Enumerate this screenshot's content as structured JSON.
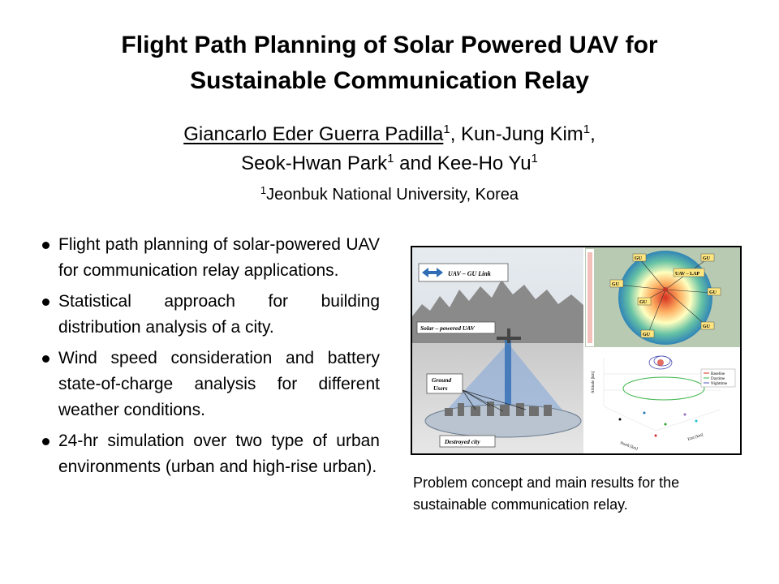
{
  "title": {
    "line1": "Flight Path Planning of Solar Powered UAV for",
    "line2": "Sustainable Communication Relay"
  },
  "authors": {
    "a1": "Giancarlo Eder Guerra Padilla",
    "a2": "Kun-Jung Kim",
    "a3": "Seok-Hwan Park",
    "a4": "Kee-Ho Yu",
    "sup": "1",
    "sep_comma": ", ",
    "sep_and": " and "
  },
  "affiliation": {
    "sup": "1",
    "text": "Jeonbuk National University, Korea"
  },
  "bullets": [
    "Flight path planning of solar-powered UAV for communication relay applications.",
    "Statistical approach for building distribution analysis of a city.",
    "Wind speed consideration and battery state-of-charge analysis for different weather conditions.",
    "24-hr simulation over two type of urban environments (urban and high-rise urban)."
  ],
  "figure": {
    "link_label": "UAV – GU Link",
    "uav_label": "Solar – powered UAV",
    "ground_label_1": "Ground",
    "ground_label_2": "Users",
    "city_label": "Destroyed city",
    "lap_label": "UAV – LAP",
    "gu_labels": [
      "GU",
      "GU",
      "GU",
      "GU",
      "GU",
      "GU",
      "GU",
      "GU"
    ],
    "legend": [
      "Baseline",
      "Daytime",
      "Nighttime"
    ],
    "y_axis_label": "Altitude [km]",
    "x_axis_label": "North [km]",
    "z_axis_label": "East [km]"
  },
  "caption": "Problem concept and main results for the sustainable communication relay.",
  "colors": {
    "link_arrow": "#2f6db5",
    "beam": "#7ea4d8",
    "mountain": "#8a8a8a",
    "heatmap_hot": "#d7301f",
    "heatmap_cool": "#2c7fb8"
  }
}
